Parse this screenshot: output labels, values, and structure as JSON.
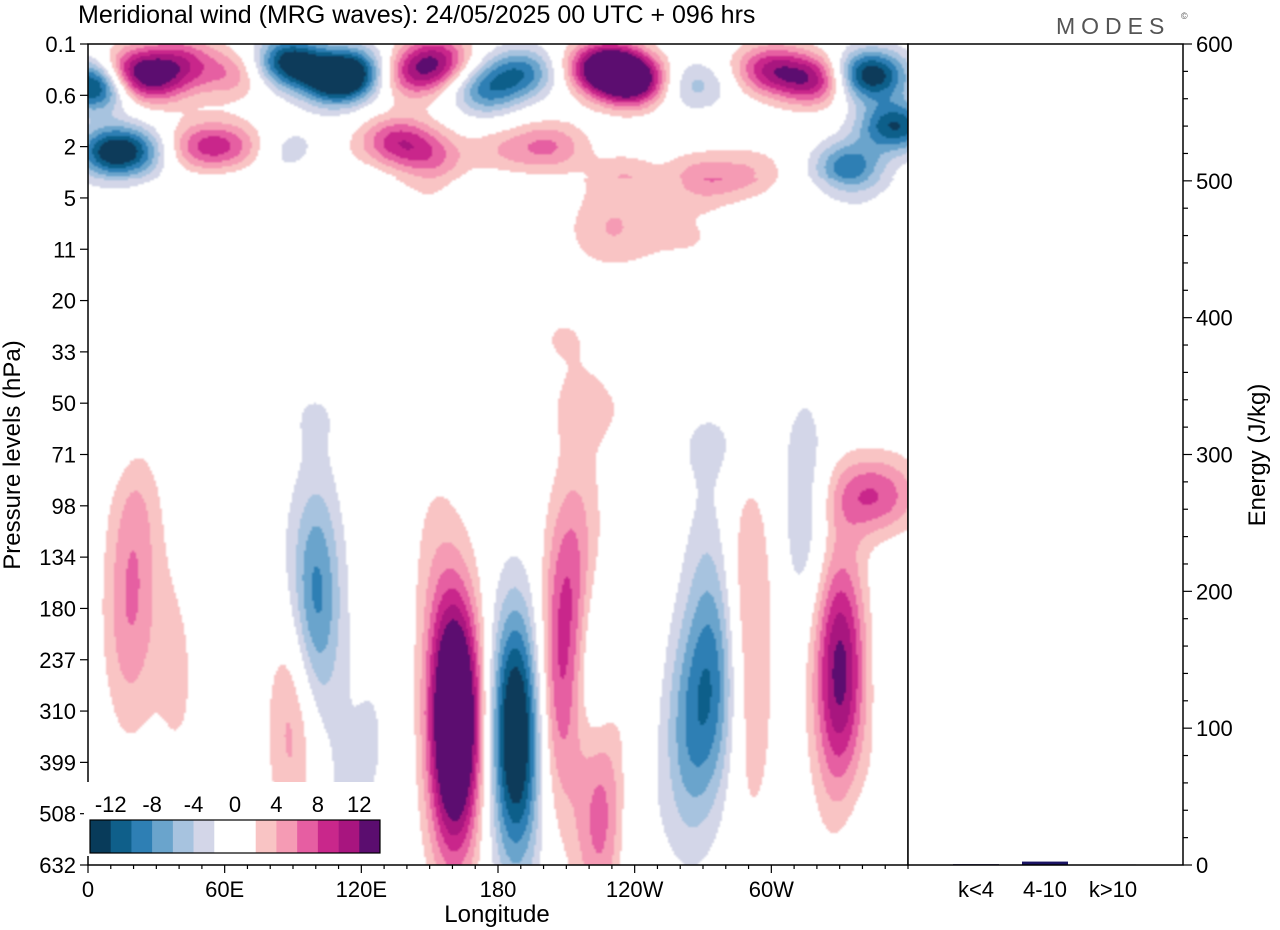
{
  "title": "Meridional wind (MRG waves):  24/05/2025  00 UTC  + 096 hrs",
  "brand": "MODES",
  "brand_mark": "©",
  "colors": {
    "neg": [
      "#083b5a",
      "#0f5f8a",
      "#2e7fb4",
      "#6aa4cc",
      "#a7c3df",
      "#d3d6e8"
    ],
    "zero": "#ffffff",
    "pos": [
      "#f9c4c4",
      "#f59bb4",
      "#e65ea2",
      "#c9278b",
      "#a8157f",
      "#5b0d6f"
    ],
    "bar": "#1b1464"
  },
  "chart_data": [
    {
      "type": "heatmap",
      "title": "Meridional wind (MRG waves):  24/05/2025  00 UTC  + 096 hrs",
      "xlabel": "Longitude",
      "ylabel": "Pressure levels (hPa)",
      "x_ticks": [
        "0",
        "60E",
        "120E",
        "180",
        "120W",
        "60W"
      ],
      "x_tick_values": [
        0,
        60,
        120,
        180,
        240,
        300
      ],
      "x_range": [
        0,
        360
      ],
      "y_ticks": [
        "0.1",
        "0.6",
        "2",
        "5",
        "11",
        "20",
        "33",
        "50",
        "71",
        "98",
        "134",
        "180",
        "237",
        "310",
        "399",
        "508",
        "632"
      ],
      "colorbar": {
        "labels": [
          "-12",
          "-8",
          "-4",
          "0",
          "4",
          "8",
          "12"
        ],
        "levels": [
          -14,
          -12,
          -10,
          -8,
          -6,
          -4,
          -2,
          0,
          2,
          4,
          6,
          8,
          10,
          12,
          14
        ]
      },
      "blobs": [
        {
          "lon": 2,
          "lev": 0.8,
          "v": -14
        },
        {
          "lon": 18,
          "lev": 0.55,
          "v": 9
        },
        {
          "lon": 32,
          "lev": 0.7,
          "v": 7
        },
        {
          "lon": 42,
          "lev": 0.3,
          "v": 7
        },
        {
          "lon": 62,
          "lev": 0.6,
          "v": 6
        },
        {
          "lon": 88,
          "lev": 0.35,
          "v": -12
        },
        {
          "lon": 110,
          "lev": 0.7,
          "v": -13
        },
        {
          "lon": 120,
          "lev": 0.5,
          "v": -9
        },
        {
          "lon": 140,
          "lev": 0.6,
          "v": 9
        },
        {
          "lon": 152,
          "lev": 0.3,
          "v": 9
        },
        {
          "lon": 175,
          "lev": 0.9,
          "v": -7
        },
        {
          "lon": 192,
          "lev": 0.55,
          "v": -9
        },
        {
          "lon": 225,
          "lev": 0.45,
          "v": 15
        },
        {
          "lon": 238,
          "lev": 0.7,
          "v": 14
        },
        {
          "lon": 268,
          "lev": 0.8,
          "v": -5
        },
        {
          "lon": 298,
          "lev": 0.5,
          "v": 10
        },
        {
          "lon": 318,
          "lev": 0.7,
          "v": 9
        },
        {
          "lon": 345,
          "lev": 0.6,
          "v": -15
        },
        {
          "lon": 355,
          "lev": 1.6,
          "v": -14
        },
        {
          "lon": 8,
          "lev": 2.1,
          "v": -10
        },
        {
          "lon": 22,
          "lev": 2.1,
          "v": -6
        },
        {
          "lon": 50,
          "lev": 2.0,
          "v": 7
        },
        {
          "lon": 62,
          "lev": 2.0,
          "v": 6
        },
        {
          "lon": 90,
          "lev": 2.1,
          "v": -3
        },
        {
          "lon": 105,
          "lev": 2.4,
          "v": 2
        },
        {
          "lon": 135,
          "lev": 1.9,
          "v": 10
        },
        {
          "lon": 150,
          "lev": 2.2,
          "v": 5
        },
        {
          "lon": 182,
          "lev": 2.1,
          "v": 3
        },
        {
          "lon": 203,
          "lev": 2.0,
          "v": 7
        },
        {
          "lon": 235,
          "lev": 2.6,
          "v": 3
        },
        {
          "lon": 270,
          "lev": 2.6,
          "v": 5
        },
        {
          "lon": 290,
          "lev": 2.5,
          "v": 4
        },
        {
          "lon": 335,
          "lev": 2.4,
          "v": -9
        },
        {
          "lon": 230,
          "lev": 3.6,
          "v": 4
        },
        {
          "lon": 60,
          "lev": 3.1,
          "v": -2
        },
        {
          "lon": 120,
          "lev": 3.0,
          "v": -2
        },
        {
          "lon": 150,
          "lev": 3.1,
          "v": 2
        },
        {
          "lon": 175,
          "lev": 3.3,
          "v": -2
        },
        {
          "lon": 10,
          "lev": 3.8,
          "v": -2
        },
        {
          "lon": 35,
          "lev": 4.0,
          "v": 1.8
        },
        {
          "lon": 265,
          "lev": 3.8,
          "v": 2
        },
        {
          "lon": 340,
          "lev": 3.8,
          "v": -2
        },
        {
          "lon": 90,
          "lev": 5.6,
          "v": -2
        },
        {
          "lon": 108,
          "lev": 5.2,
          "v": 2
        },
        {
          "lon": 208,
          "lev": 5.7,
          "v": 2
        },
        {
          "lon": 272,
          "lev": 5.3,
          "v": -2
        },
        {
          "lon": 220,
          "lev": 7.1,
          "v": 2.3
        },
        {
          "lon": 100,
          "lev": 7.2,
          "v": -1.5
        },
        {
          "lon": 15,
          "lev": 7.8,
          "v": -1.5
        },
        {
          "lon": 275,
          "lev": 7.8,
          "v": -2
        },
        {
          "lon": 22,
          "lev": 9.0,
          "v": 3
        },
        {
          "lon": 18,
          "lev": 11.2,
          "v": 5
        },
        {
          "lon": 40,
          "lev": 12.0,
          "v": 3
        },
        {
          "lon": 50,
          "lev": 10.5,
          "v": -1.5
        },
        {
          "lon": 75,
          "lev": 9.5,
          "v": -1.5
        },
        {
          "lon": 100,
          "lev": 10.8,
          "v": -9
        },
        {
          "lon": 90,
          "lev": 12.5,
          "v": -2
        },
        {
          "lon": 90,
          "lev": 13.0,
          "v": 7
        },
        {
          "lon": 125,
          "lev": 13.5,
          "v": -2
        },
        {
          "lon": 152,
          "lev": 10.0,
          "v": 2
        },
        {
          "lon": 160,
          "lev": 12.5,
          "v": 7
        },
        {
          "lon": 162,
          "lev": 13.2,
          "v": 12
        },
        {
          "lon": 160,
          "lev": 14.5,
          "v": 5
        },
        {
          "lon": 188,
          "lev": 13.0,
          "v": -12
        },
        {
          "lon": 188,
          "lev": 14.5,
          "v": -6
        },
        {
          "lon": 212,
          "lev": 11.0,
          "v": 8
        },
        {
          "lon": 207,
          "lev": 13.0,
          "v": 6
        },
        {
          "lon": 220,
          "lev": 12.2,
          "v": -7
        },
        {
          "lon": 225,
          "lev": 14.8,
          "v": 8
        },
        {
          "lon": 218,
          "lev": 9.5,
          "v": 2
        },
        {
          "lon": 237,
          "lev": 11.0,
          "v": 2
        },
        {
          "lon": 275,
          "lev": 12.5,
          "v": -8
        },
        {
          "lon": 263,
          "lev": 13.5,
          "v": -6
        },
        {
          "lon": 272,
          "lev": 10.0,
          "v": -2
        },
        {
          "lon": 290,
          "lev": 10.5,
          "v": 4
        },
        {
          "lon": 290,
          "lev": 13.5,
          "v": 3
        },
        {
          "lon": 330,
          "lev": 12.0,
          "v": 11
        },
        {
          "lon": 330,
          "lev": 13.5,
          "v": 3
        },
        {
          "lon": 345,
          "lev": 8.8,
          "v": 8
        },
        {
          "lon": 315,
          "lev": 9.0,
          "v": -4
        },
        {
          "lon": 355,
          "lev": 13.0,
          "v": -3
        },
        {
          "lon": 350,
          "lev": 14.5,
          "v": 3
        },
        {
          "lon": 340,
          "lev": 15.5,
          "v": -2
        },
        {
          "lon": 240,
          "lev": 15.5,
          "v": -2
        },
        {
          "lon": 60,
          "lev": 15.5,
          "v": -2
        },
        {
          "lon": 110,
          "lev": 15.2,
          "v": -2
        }
      ]
    },
    {
      "type": "bar",
      "categories": [
        "k<4",
        "4-10",
        "k>10"
      ],
      "values": [
        0.6,
        2.5,
        0.4
      ],
      "ylabel": "Energy (J/kg)",
      "ylim": [
        0,
        600
      ],
      "y_ticks": [
        "0",
        "100",
        "200",
        "300",
        "400",
        "500",
        "600"
      ],
      "y_tick_values": [
        0,
        100,
        200,
        300,
        400,
        500,
        600
      ]
    }
  ]
}
